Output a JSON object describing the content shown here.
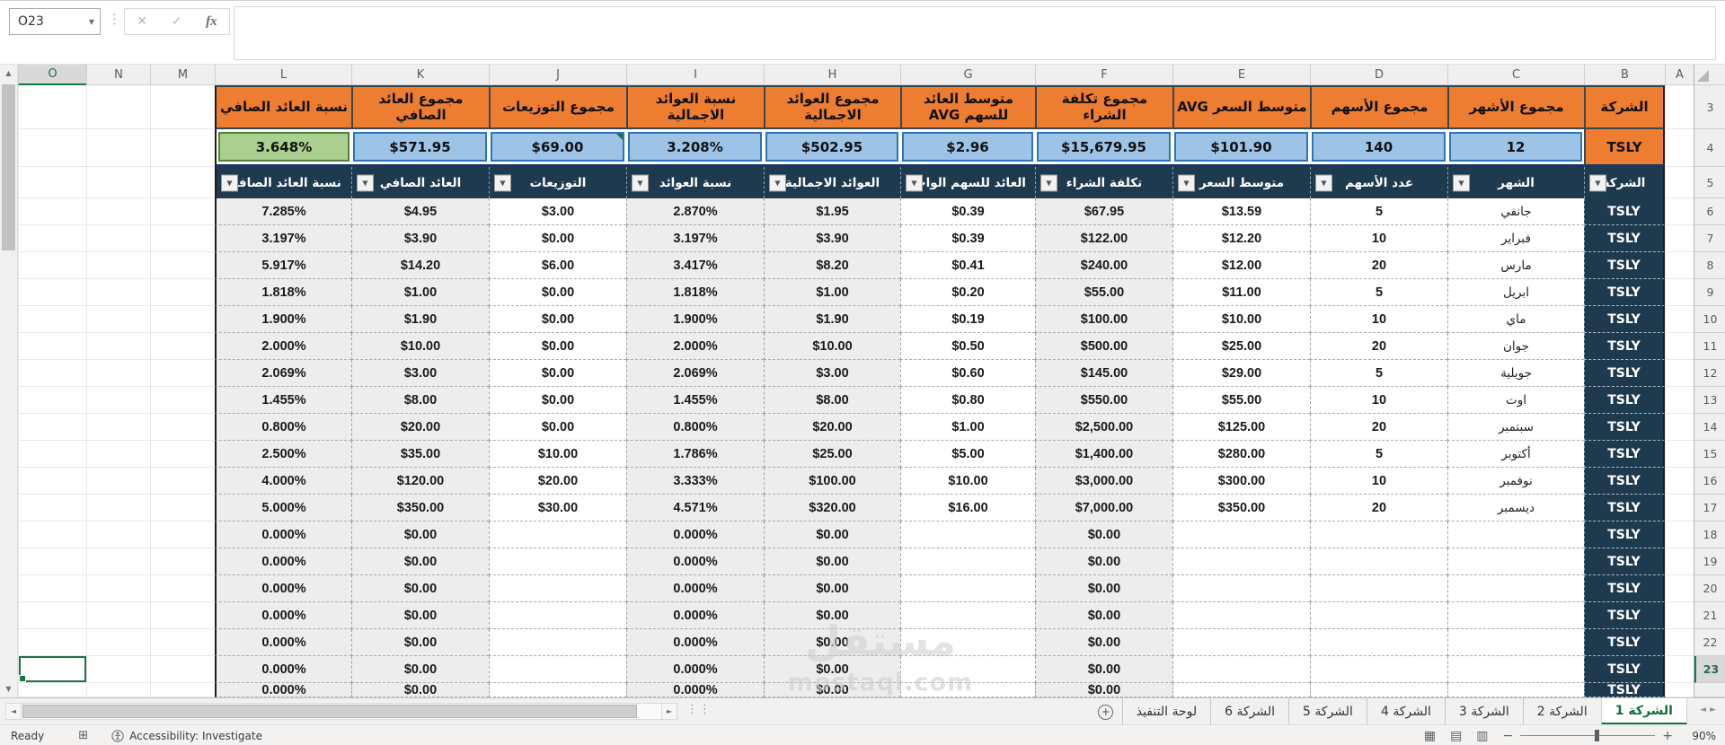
{
  "window": {
    "name_box": "O23",
    "formula_bar_value": ""
  },
  "grid": {
    "column_letters": [
      "O",
      "N",
      "M",
      "L",
      "K",
      "J",
      "I",
      "H",
      "G",
      "F",
      "E",
      "D",
      "C",
      "B",
      "A"
    ],
    "selected_column": "O",
    "selected_cell": "O23",
    "selected_row": 23,
    "row_numbers": [
      3,
      4,
      5,
      6,
      7,
      8,
      9,
      10,
      11,
      12,
      13,
      14,
      15,
      16,
      17,
      18,
      19,
      20,
      21,
      22,
      23
    ]
  },
  "table": {
    "columns": [
      {
        "letter": "B",
        "key": "company",
        "header": "الشركة",
        "summary": "TSLY",
        "filter_label": "الشركة",
        "body_fill": "navy",
        "summary_fill": "orange"
      },
      {
        "letter": "C",
        "key": "month",
        "header": "مجموع الأشهر",
        "summary": "12",
        "filter_label": "الشهر",
        "body_fill": "white",
        "summary_fill": "blue"
      },
      {
        "letter": "D",
        "key": "shares",
        "header": "مجموع الأسهم",
        "summary": "140",
        "filter_label": "عدد الأسهم",
        "body_fill": "white",
        "summary_fill": "blue"
      },
      {
        "letter": "E",
        "key": "avg_price",
        "header": "متوسط السعر AVG",
        "summary": "$101.90",
        "filter_label": "متوسط السعر",
        "body_fill": "white",
        "summary_fill": "blue"
      },
      {
        "letter": "F",
        "key": "cost",
        "header": "مجموع تكلفة الشراء",
        "summary": "$15,679.95",
        "filter_label": "تكلفة الشراء",
        "body_fill": "gray",
        "summary_fill": "blue"
      },
      {
        "letter": "G",
        "key": "per_share",
        "header": "متوسط العائد للسهم AVG",
        "summary": "$2.96",
        "filter_label": "العائد للسهم الواحد",
        "body_fill": "white",
        "summary_fill": "blue"
      },
      {
        "letter": "H",
        "key": "gross",
        "header": "مجموع العوائد الاجمالية",
        "summary": "$502.95",
        "filter_label": "العوائد الاجمالية",
        "body_fill": "gray",
        "summary_fill": "blue"
      },
      {
        "letter": "I",
        "key": "gross_pct",
        "header": "نسبة العوائد الاجمالية",
        "summary": "3.208%",
        "filter_label": "نسبة العوائد",
        "body_fill": "gray",
        "summary_fill": "blue"
      },
      {
        "letter": "J",
        "key": "dividends",
        "header": "مجموع التوزيعات",
        "summary": "$69.00",
        "filter_label": "التوزيعات",
        "body_fill": "white",
        "summary_fill": "blue",
        "summary_marker": true
      },
      {
        "letter": "K",
        "key": "net",
        "header": "مجموع العائد الصافي",
        "summary": "$571.95",
        "filter_label": "العائد الصافي",
        "body_fill": "gray",
        "summary_fill": "blue"
      },
      {
        "letter": "L",
        "key": "net_pct",
        "header": "نسبة العائد الصافي",
        "summary": "3.648%",
        "filter_label": "نسبة العائد الصافي",
        "body_fill": "gray",
        "summary_fill": "green"
      }
    ],
    "rows": [
      {
        "company": "TSLY",
        "month": "جانفي",
        "shares": "5",
        "avg_price": "$13.59",
        "cost": "$67.95",
        "per_share": "$0.39",
        "gross": "$1.95",
        "gross_pct": "2.870%",
        "dividends": "$3.00",
        "net": "$4.95",
        "net_pct": "7.285%"
      },
      {
        "company": "TSLY",
        "month": "فبراير",
        "shares": "10",
        "avg_price": "$12.20",
        "cost": "$122.00",
        "per_share": "$0.39",
        "gross": "$3.90",
        "gross_pct": "3.197%",
        "dividends": "$0.00",
        "net": "$3.90",
        "net_pct": "3.197%"
      },
      {
        "company": "TSLY",
        "month": "مارس",
        "shares": "20",
        "avg_price": "$12.00",
        "cost": "$240.00",
        "per_share": "$0.41",
        "gross": "$8.20",
        "gross_pct": "3.417%",
        "dividends": "$6.00",
        "net": "$14.20",
        "net_pct": "5.917%"
      },
      {
        "company": "TSLY",
        "month": "ابريل",
        "shares": "5",
        "avg_price": "$11.00",
        "cost": "$55.00",
        "per_share": "$0.20",
        "gross": "$1.00",
        "gross_pct": "1.818%",
        "dividends": "$0.00",
        "net": "$1.00",
        "net_pct": "1.818%"
      },
      {
        "company": "TSLY",
        "month": "ماي",
        "shares": "10",
        "avg_price": "$10.00",
        "cost": "$100.00",
        "per_share": "$0.19",
        "gross": "$1.90",
        "gross_pct": "1.900%",
        "dividends": "$0.00",
        "net": "$1.90",
        "net_pct": "1.900%"
      },
      {
        "company": "TSLY",
        "month": "جوان",
        "shares": "20",
        "avg_price": "$25.00",
        "cost": "$500.00",
        "per_share": "$0.50",
        "gross": "$10.00",
        "gross_pct": "2.000%",
        "dividends": "$0.00",
        "net": "$10.00",
        "net_pct": "2.000%"
      },
      {
        "company": "TSLY",
        "month": "جويلية",
        "shares": "5",
        "avg_price": "$29.00",
        "cost": "$145.00",
        "per_share": "$0.60",
        "gross": "$3.00",
        "gross_pct": "2.069%",
        "dividends": "$0.00",
        "net": "$3.00",
        "net_pct": "2.069%"
      },
      {
        "company": "TSLY",
        "month": "اوت",
        "shares": "10",
        "avg_price": "$55.00",
        "cost": "$550.00",
        "per_share": "$0.80",
        "gross": "$8.00",
        "gross_pct": "1.455%",
        "dividends": "$0.00",
        "net": "$8.00",
        "net_pct": "1.455%"
      },
      {
        "company": "TSLY",
        "month": "سبتمبر",
        "shares": "20",
        "avg_price": "$125.00",
        "cost": "$2,500.00",
        "per_share": "$1.00",
        "gross": "$20.00",
        "gross_pct": "0.800%",
        "dividends": "$0.00",
        "net": "$20.00",
        "net_pct": "0.800%"
      },
      {
        "company": "TSLY",
        "month": "أكتوبر",
        "shares": "5",
        "avg_price": "$280.00",
        "cost": "$1,400.00",
        "per_share": "$5.00",
        "gross": "$25.00",
        "gross_pct": "1.786%",
        "dividends": "$10.00",
        "net": "$35.00",
        "net_pct": "2.500%"
      },
      {
        "company": "TSLY",
        "month": "نوفمبر",
        "shares": "10",
        "avg_price": "$300.00",
        "cost": "$3,000.00",
        "per_share": "$10.00",
        "gross": "$100.00",
        "gross_pct": "3.333%",
        "dividends": "$20.00",
        "net": "$120.00",
        "net_pct": "4.000%"
      },
      {
        "company": "TSLY",
        "month": "ديسمبر",
        "shares": "20",
        "avg_price": "$350.00",
        "cost": "$7,000.00",
        "per_share": "$16.00",
        "gross": "$320.00",
        "gross_pct": "4.571%",
        "dividends": "$30.00",
        "net": "$350.00",
        "net_pct": "5.000%"
      },
      {
        "company": "TSLY",
        "month": "",
        "shares": "",
        "avg_price": "",
        "cost": "$0.00",
        "per_share": "",
        "gross": "$0.00",
        "gross_pct": "0.000%",
        "dividends": "",
        "net": "$0.00",
        "net_pct": "0.000%"
      },
      {
        "company": "TSLY",
        "month": "",
        "shares": "",
        "avg_price": "",
        "cost": "$0.00",
        "per_share": "",
        "gross": "$0.00",
        "gross_pct": "0.000%",
        "dividends": "",
        "net": "$0.00",
        "net_pct": "0.000%"
      },
      {
        "company": "TSLY",
        "month": "",
        "shares": "",
        "avg_price": "",
        "cost": "$0.00",
        "per_share": "",
        "gross": "$0.00",
        "gross_pct": "0.000%",
        "dividends": "",
        "net": "$0.00",
        "net_pct": "0.000%"
      },
      {
        "company": "TSLY",
        "month": "",
        "shares": "",
        "avg_price": "",
        "cost": "$0.00",
        "per_share": "",
        "gross": "$0.00",
        "gross_pct": "0.000%",
        "dividends": "",
        "net": "$0.00",
        "net_pct": "0.000%"
      },
      {
        "company": "TSLY",
        "month": "",
        "shares": "",
        "avg_price": "",
        "cost": "$0.00",
        "per_share": "",
        "gross": "$0.00",
        "gross_pct": "0.000%",
        "dividends": "",
        "net": "$0.00",
        "net_pct": "0.000%"
      },
      {
        "company": "TSLY",
        "month": "",
        "shares": "",
        "avg_price": "",
        "cost": "$0.00",
        "per_share": "",
        "gross": "$0.00",
        "gross_pct": "0.000%",
        "dividends": "",
        "net": "$0.00",
        "net_pct": "0.000%"
      }
    ],
    "partial_row": {
      "company": "TSLY",
      "month": "",
      "shares": "",
      "avg_price": "",
      "cost": "$0.00",
      "per_share": "",
      "gross": "$0.00",
      "gross_pct": "0.000%",
      "dividends": "",
      "net": "$0.00",
      "net_pct": "0.000%"
    }
  },
  "sheet_tabs": {
    "tabs": [
      "الشركة 1",
      "الشركة 2",
      "الشركة 3",
      "الشركة 4",
      "الشركة 5",
      "الشركة 6",
      "لوحة التنفيذ"
    ],
    "active_index": 0,
    "add_button": "+"
  },
  "status_bar": {
    "ready": "Ready",
    "accessibility": "Accessibility: Investigate",
    "zoom_level": "90%"
  },
  "watermark": {
    "title": "مستقل",
    "subtitle": "mostaql.com"
  },
  "colors": {
    "header_orange": "#ED7D31",
    "summary_blue": "#9DC3E6",
    "summary_blue_border": "#2E75B6",
    "summary_green": "#A9D08E",
    "summary_green_border": "#538135",
    "table_navy": "#1E3A4F",
    "band_gray": "#EDEDED",
    "selection_green": "#217346",
    "active_tab_green": "#107C41"
  }
}
